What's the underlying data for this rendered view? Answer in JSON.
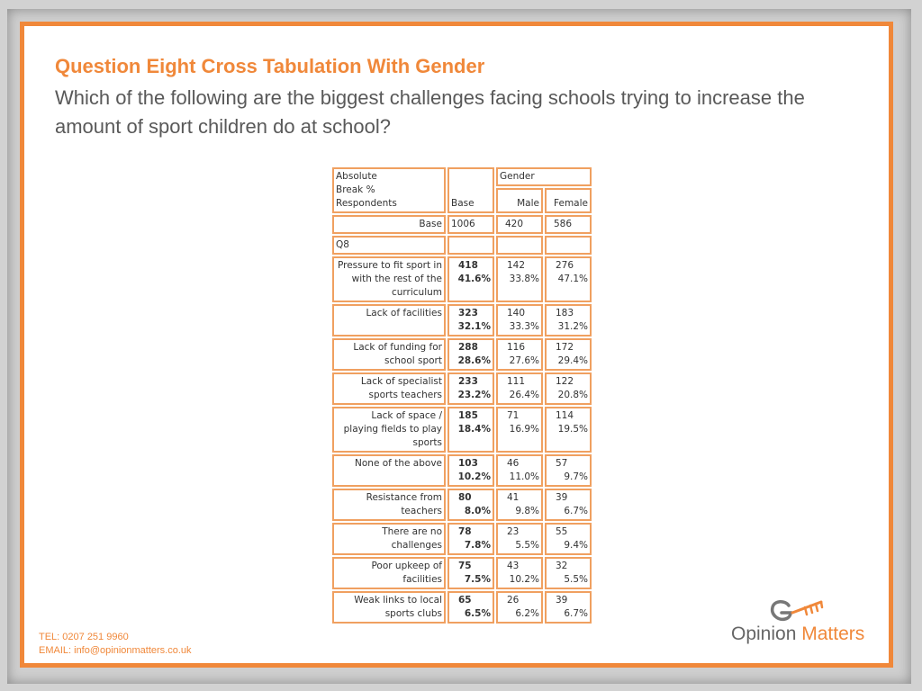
{
  "slide": {
    "title": "Question Eight Cross Tabulation With Gender",
    "subtitle": "Which of the following are the biggest challenges facing schools trying to increase the amount of sport children do at school?"
  },
  "table": {
    "corner_lines": [
      "Absolute",
      "Break %",
      "Respondents"
    ],
    "col_base": "Base",
    "col_gender": "Gender",
    "col_male": "Male",
    "col_female": "Female",
    "base_row": {
      "label": "Base",
      "base": "1006",
      "male": "420",
      "female": "586"
    },
    "section_label": "Q8",
    "rows": [
      {
        "label": "Pressure to fit sport in with the rest of the curriculum",
        "n": "418",
        "pct": "41.6%",
        "m_n": "142",
        "m_pct": "33.8%",
        "f_n": "276",
        "f_pct": "47.1%"
      },
      {
        "label": "Lack of facilities",
        "n": "323",
        "pct": "32.1%",
        "m_n": "140",
        "m_pct": "33.3%",
        "f_n": "183",
        "f_pct": "31.2%"
      },
      {
        "label": "Lack of funding for school sport",
        "n": "288",
        "pct": "28.6%",
        "m_n": "116",
        "m_pct": "27.6%",
        "f_n": "172",
        "f_pct": "29.4%"
      },
      {
        "label": "Lack of specialist sports teachers",
        "n": "233",
        "pct": "23.2%",
        "m_n": "111",
        "m_pct": "26.4%",
        "f_n": "122",
        "f_pct": "20.8%"
      },
      {
        "label": "Lack of space / playing fields to play sports",
        "n": "185",
        "pct": "18.4%",
        "m_n": "71",
        "m_pct": "16.9%",
        "f_n": "114",
        "f_pct": "19.5%"
      },
      {
        "label": "None of the above",
        "n": "103",
        "pct": "10.2%",
        "m_n": "46",
        "m_pct": "11.0%",
        "f_n": "57",
        "f_pct": "9.7%"
      },
      {
        "label": "Resistance from teachers",
        "n": "80",
        "pct": "8.0%",
        "m_n": "41",
        "m_pct": "9.8%",
        "f_n": "39",
        "f_pct": "6.7%"
      },
      {
        "label": "There are no challenges",
        "n": "78",
        "pct": "7.8%",
        "m_n": "23",
        "m_pct": "5.5%",
        "f_n": "55",
        "f_pct": "9.4%"
      },
      {
        "label": "Poor upkeep of facilities",
        "n": "75",
        "pct": "7.5%",
        "m_n": "43",
        "m_pct": "10.2%",
        "f_n": "32",
        "f_pct": "5.5%"
      },
      {
        "label": "Weak links to local sports clubs",
        "n": "65",
        "pct": "6.5%",
        "m_n": "26",
        "m_pct": "6.2%",
        "f_n": "39",
        "f_pct": "6.7%"
      }
    ]
  },
  "footer": {
    "tel": "TEL: 0207 251 9960",
    "email": "EMAIL: info@opinionmatters.co.uk"
  },
  "logo": {
    "word1": "Opinion",
    "word2": "Matters"
  },
  "colors": {
    "accent": "#f0883a",
    "text_grey": "#595959"
  }
}
